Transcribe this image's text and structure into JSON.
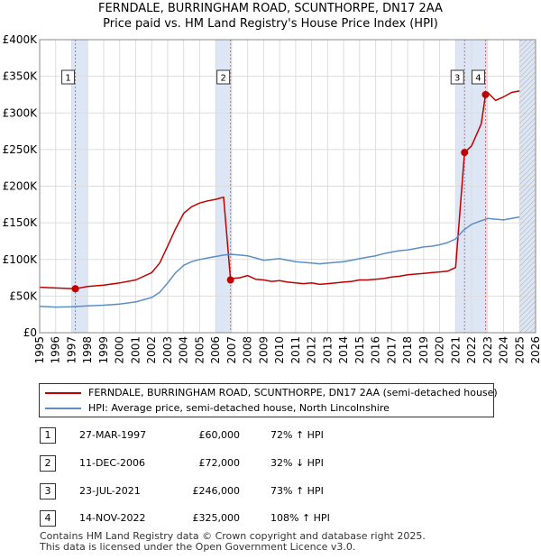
{
  "title_line1": "FERNDALE, BURRINGHAM ROAD, SCUNTHORPE, DN17 2AA",
  "title_line2": "Price paid vs. HM Land Registry's House Price Index (HPI)",
  "colors": {
    "property": "#c00000",
    "hpi": "#5b8ec8",
    "band": "#dde6f5",
    "vline": "#e06666",
    "grid": "#dddddd"
  },
  "legend": {
    "property_label": "FERNDALE, BURRINGHAM ROAD, SCUNTHORPE, DN17 2AA (semi-detached house)",
    "hpi_label": "HPI: Average price, semi-detached house, North Lincolnshire"
  },
  "sales": [
    {
      "num": "1",
      "date": "27-MAR-1997",
      "price": "£60,000",
      "hpi": "72% ↑ HPI"
    },
    {
      "num": "2",
      "date": "11-DEC-2006",
      "price": "£72,000",
      "hpi": "32% ↓ HPI"
    },
    {
      "num": "3",
      "date": "23-JUL-2021",
      "price": "£246,000",
      "hpi": "73% ↑ HPI"
    },
    {
      "num": "4",
      "date": "14-NOV-2022",
      "price": "£325,000",
      "hpi": "108% ↑ HPI"
    }
  ],
  "footer_line1": "Contains HM Land Registry data © Crown copyright and database right 2025.",
  "footer_line2": "This data is licensed under the Open Government Licence v3.0.",
  "chart_data": {
    "type": "line",
    "title": "FERNDALE, BURRINGHAM ROAD, SCUNTHORPE, DN17 2AA",
    "subtitle": "Price paid vs. HM Land Registry's House Price Index (HPI)",
    "xlabel": "",
    "ylabel": "",
    "xlim": [
      1995,
      2026
    ],
    "ylim": [
      0,
      400000
    ],
    "y_ticks": [
      0,
      50000,
      100000,
      150000,
      200000,
      250000,
      300000,
      350000,
      400000
    ],
    "y_tick_labels": [
      "£0",
      "£50K",
      "£100K",
      "£150K",
      "£200K",
      "£250K",
      "£300K",
      "£350K",
      "£400K"
    ],
    "x_ticks": [
      1995,
      1996,
      1997,
      1998,
      1999,
      2000,
      2001,
      2002,
      2003,
      2004,
      2005,
      2006,
      2007,
      2008,
      2009,
      2010,
      2011,
      2012,
      2013,
      2014,
      2015,
      2016,
      2017,
      2018,
      2019,
      2020,
      2021,
      2022,
      2023,
      2024,
      2025,
      2026
    ],
    "shaded_bands": [
      [
        1997.0,
        1998.0
      ],
      [
        2006.0,
        2007.0
      ],
      [
        2021.0,
        2022.0
      ],
      [
        2022.0,
        2023.0
      ],
      [
        2025.0,
        2026.0
      ]
    ],
    "hatched_region": [
      2025.0,
      2026.0
    ],
    "series": [
      {
        "name": "FERNDALE, BURRINGHAM ROAD, SCUNTHORPE, DN17 2AA (semi-detached house)",
        "color": "#c00000",
        "x": [
          1995.0,
          1996.0,
          1997.23,
          1998.0,
          1999.0,
          2000.0,
          2001.0,
          2002.0,
          2002.5,
          2003.0,
          2003.5,
          2004.0,
          2004.5,
          2005.0,
          2005.5,
          2006.0,
          2006.5,
          2006.93,
          2007.0,
          2007.5,
          2008.0,
          2008.5,
          2009.0,
          2009.5,
          2010.0,
          2010.5,
          2011.0,
          2011.5,
          2012.0,
          2012.5,
          2013.0,
          2013.5,
          2014.0,
          2014.5,
          2015.0,
          2015.5,
          2016.0,
          2016.5,
          2017.0,
          2017.5,
          2018.0,
          2018.5,
          2019.0,
          2019.5,
          2020.0,
          2020.5,
          2021.0,
          2021.56,
          2022.0,
          2022.3,
          2022.6,
          2022.87,
          2023.0,
          2023.5,
          2024.0,
          2024.5,
          2025.0
        ],
        "values": [
          62000,
          61000,
          60000,
          63000,
          65000,
          68000,
          72000,
          82000,
          95000,
          118000,
          142000,
          163000,
          172000,
          177000,
          180000,
          182000,
          185000,
          72000,
          74000,
          75000,
          78000,
          73000,
          72000,
          70000,
          71000,
          69000,
          68000,
          67000,
          68000,
          66000,
          67000,
          68000,
          69000,
          70000,
          72000,
          72000,
          73000,
          74000,
          76000,
          77000,
          79000,
          80000,
          81000,
          82000,
          83000,
          84000,
          89000,
          246000,
          255000,
          270000,
          285000,
          325000,
          328000,
          317000,
          322000,
          328000,
          330000
        ]
      },
      {
        "name": "HPI: Average price, semi-detached house, North Lincolnshire",
        "color": "#5b8ec8",
        "x": [
          1995.0,
          1996.0,
          1997.0,
          1998.0,
          1999.0,
          2000.0,
          2001.0,
          2002.0,
          2002.5,
          2003.0,
          2003.5,
          2004.0,
          2004.5,
          2005.0,
          2005.5,
          2006.0,
          2006.5,
          2007.0,
          2007.5,
          2008.0,
          2008.5,
          2009.0,
          2009.5,
          2010.0,
          2010.5,
          2011.0,
          2011.5,
          2012.0,
          2012.5,
          2013.0,
          2013.5,
          2014.0,
          2014.5,
          2015.0,
          2015.5,
          2016.0,
          2016.5,
          2017.0,
          2017.5,
          2018.0,
          2018.5,
          2019.0,
          2019.5,
          2020.0,
          2020.5,
          2021.0,
          2021.5,
          2022.0,
          2022.5,
          2023.0,
          2023.5,
          2024.0,
          2024.5,
          2025.0
        ],
        "values": [
          36000,
          35000,
          35500,
          36500,
          37500,
          39000,
          42000,
          48000,
          55000,
          68000,
          82000,
          92000,
          97000,
          100000,
          102000,
          104000,
          106000,
          107000,
          106000,
          105000,
          102000,
          99000,
          100000,
          101000,
          99000,
          97000,
          96000,
          95000,
          94000,
          95000,
          96000,
          97000,
          99000,
          101000,
          103000,
          105000,
          108000,
          110000,
          112000,
          113000,
          115000,
          117000,
          118000,
          120000,
          123000,
          128000,
          140000,
          148000,
          152000,
          156000,
          155000,
          154000,
          156000,
          158000
        ]
      }
    ],
    "sale_markers": [
      {
        "label": "1",
        "x": 1997.23,
        "y": 60000
      },
      {
        "label": "2",
        "x": 2006.93,
        "y": 72000
      },
      {
        "label": "3",
        "x": 2021.56,
        "y": 246000
      },
      {
        "label": "4",
        "x": 2022.87,
        "y": 325000
      }
    ]
  }
}
